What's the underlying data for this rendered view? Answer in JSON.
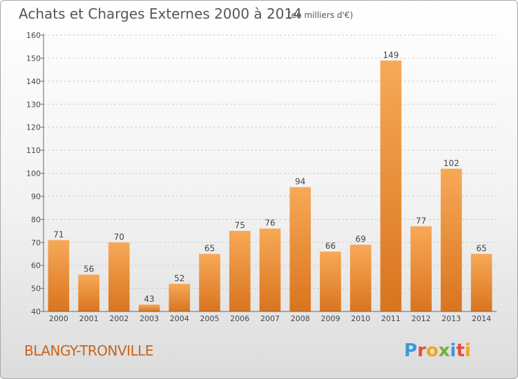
{
  "header": {
    "title": "Achats et Charges Externes 2000 à 2014",
    "unit_note": "(en milliers d'€)"
  },
  "footer": {
    "commune": "BLANGY-TRONVILLE",
    "brand_letters": [
      "P",
      "r",
      "o",
      "x",
      "i",
      "t",
      "i"
    ],
    "brand_colors": [
      "#3a9ad9",
      "#e84b3c",
      "#f2a51a",
      "#6cb33f",
      "#3a9ad9",
      "#e84b3c",
      "#f2a51a"
    ]
  },
  "colors": {
    "bar_light": "#f7a957",
    "bar_dark": "#d9741f",
    "grid": "#cccccc",
    "axis": "#666666"
  },
  "chart_data": {
    "type": "bar",
    "title": "Achats et Charges Externes 2000 à 2014",
    "subtitle": "(en milliers d'€)",
    "xlabel": "",
    "ylabel": "",
    "categories": [
      "2000",
      "2001",
      "2002",
      "2003",
      "2004",
      "2005",
      "2006",
      "2007",
      "2008",
      "2009",
      "2010",
      "2011",
      "2012",
      "2013",
      "2014"
    ],
    "values": [
      71,
      56,
      70,
      43,
      52,
      65,
      75,
      76,
      94,
      66,
      69,
      149,
      77,
      102,
      65
    ],
    "ylim": [
      40,
      160
    ],
    "yticks": [
      40,
      50,
      60,
      70,
      80,
      90,
      100,
      110,
      120,
      130,
      140,
      150,
      160
    ],
    "grid": true,
    "legend": "none"
  }
}
